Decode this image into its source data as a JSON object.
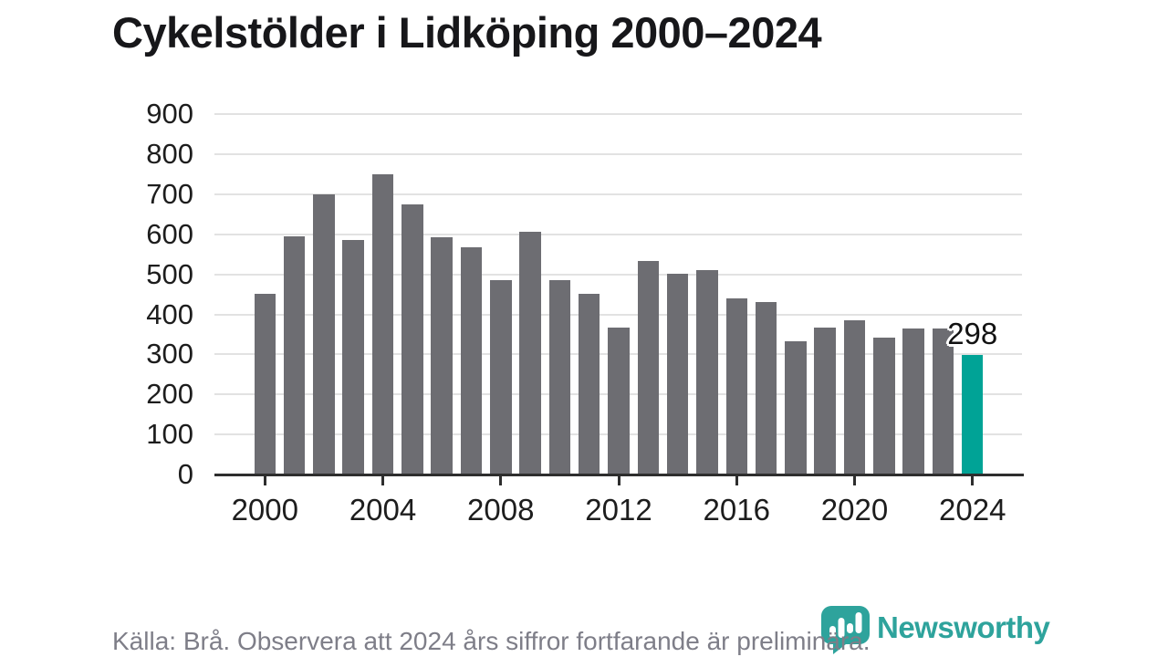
{
  "title": "Cykelstölder i Lidköping 2000–2024",
  "footer": {
    "source_note": "Källa: Brå. Observera att 2024 års siffror fortfarande är preliminära."
  },
  "branding": {
    "wordmark": "Newsworthy",
    "logo_icon": "newsworthy-speech-bubble-bar-chart-icon"
  },
  "colors": {
    "bar": "#6d6d72",
    "highlight_bar": "#00a396",
    "brand_teal": "#2ea39c",
    "grid": "#e2e2e2",
    "axis": "#2e2e2e",
    "tick_text": "#1d1d1d",
    "muted_text": "#7e7e88"
  },
  "chart_data": {
    "type": "bar",
    "title": "Cykelstölder i Lidköping 2000–2024",
    "xlabel": "",
    "ylabel": "",
    "x": [
      2000,
      2001,
      2002,
      2003,
      2004,
      2005,
      2006,
      2007,
      2008,
      2009,
      2010,
      2011,
      2012,
      2013,
      2014,
      2015,
      2016,
      2017,
      2018,
      2019,
      2020,
      2021,
      2022,
      2023,
      2024
    ],
    "values": [
      451,
      596,
      701,
      587,
      750,
      676,
      592,
      567,
      486,
      606,
      486,
      451,
      368,
      533,
      501,
      512,
      441,
      430,
      332,
      368,
      385,
      343,
      366,
      364,
      298
    ],
    "highlight_year": 2024,
    "annotation": {
      "year": 2024,
      "text": "298"
    },
    "ylim": [
      0,
      900
    ],
    "yticks": [
      0,
      100,
      200,
      300,
      400,
      500,
      600,
      700,
      800,
      900
    ],
    "xticks": [
      2000,
      2004,
      2008,
      2012,
      2016,
      2020,
      2024
    ],
    "grid": "horizontal",
    "legend": "none"
  }
}
